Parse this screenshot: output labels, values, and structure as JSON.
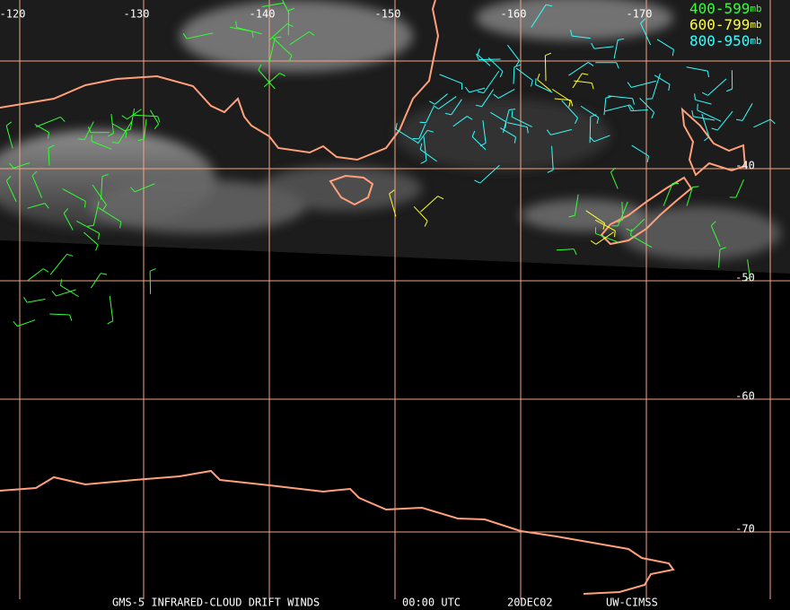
{
  "map": {
    "lon_labels": [
      "-120",
      "-130",
      "-140",
      "-150",
      "-160",
      "-170"
    ],
    "lat_labels": [
      "-40",
      "-50",
      "-60",
      "-70"
    ],
    "legend": [
      {
        "range": "400-599",
        "unit": "mb",
        "color": "#33ff33"
      },
      {
        "range": "600-799",
        "unit": "mb",
        "color": "#ffff33"
      },
      {
        "range": "800-950",
        "unit": "mb",
        "color": "#33ffff"
      }
    ],
    "footer": {
      "product": "GMS-5 INFRARED-CLOUD DRIFT WINDS",
      "time": "00:00 UTC",
      "date": "20DEC02",
      "source": "UW-CIMSS"
    }
  }
}
